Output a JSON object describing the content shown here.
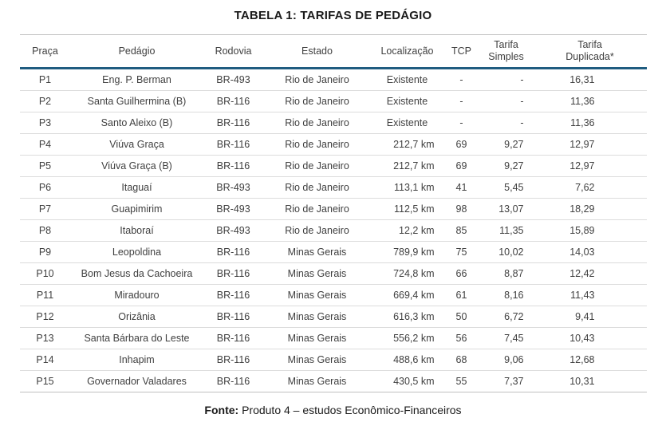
{
  "title": "TABELA 1: TARIFAS DE PEDÁGIO",
  "table": {
    "headers": [
      "Praça",
      "Pedágio",
      "Rodovia",
      "Estado",
      "Localização",
      "TCP",
      "Tarifa Simples",
      "Tarifa Duplicada*"
    ],
    "rows": [
      [
        "P1",
        "Eng. P. Berman",
        "BR-493",
        "Rio de Janeiro",
        "Existente",
        "-",
        "-",
        "16,31"
      ],
      [
        "P2",
        "Santa Guilhermina (B)",
        "BR-116",
        "Rio de Janeiro",
        "Existente",
        "-",
        "-",
        "11,36"
      ],
      [
        "P3",
        "Santo Aleixo (B)",
        "BR-116",
        "Rio de Janeiro",
        "Existente",
        "-",
        "-",
        "11,36"
      ],
      [
        "P4",
        "Viúva Graça",
        "BR-116",
        "Rio de Janeiro",
        "212,7 km",
        "69",
        "9,27",
        "12,97"
      ],
      [
        "P5",
        "Viúva Graça (B)",
        "BR-116",
        "Rio de Janeiro",
        "212,7 km",
        "69",
        "9,27",
        "12,97"
      ],
      [
        "P6",
        "Itaguaí",
        "BR-493",
        "Rio de Janeiro",
        "113,1 km",
        "41",
        "5,45",
        "7,62"
      ],
      [
        "P7",
        "Guapimirim",
        "BR-493",
        "Rio de Janeiro",
        "112,5 km",
        "98",
        "13,07",
        "18,29"
      ],
      [
        "P8",
        "Itaboraí",
        "BR-493",
        "Rio de Janeiro",
        "12,2 km",
        "85",
        "11,35",
        "15,89"
      ],
      [
        "P9",
        "Leopoldina",
        "BR-116",
        "Minas Gerais",
        "789,9 km",
        "75",
        "10,02",
        "14,03"
      ],
      [
        "P10",
        "Bom Jesus da Cachoeira",
        "BR-116",
        "Minas Gerais",
        "724,8 km",
        "66",
        "8,87",
        "12,42"
      ],
      [
        "P11",
        "Miradouro",
        "BR-116",
        "Minas Gerais",
        "669,4 km",
        "61",
        "8,16",
        "11,43"
      ],
      [
        "P12",
        "Orizânia",
        "BR-116",
        "Minas Gerais",
        "616,3 km",
        "50",
        "6,72",
        "9,41"
      ],
      [
        "P13",
        "Santa Bárbara do Leste",
        "BR-116",
        "Minas Gerais",
        "556,2 km",
        "56",
        "7,45",
        "10,43"
      ],
      [
        "P14",
        "Inhapim",
        "BR-116",
        "Minas Gerais",
        "488,6 km",
        "68",
        "9,06",
        "12,68"
      ],
      [
        "P15",
        "Governador Valadares",
        "BR-116",
        "Minas Gerais",
        "430,5 km",
        "55",
        "7,37",
        "10,31"
      ]
    ]
  },
  "footer": {
    "label": "Fonte:",
    "text": " Produto 4 – estudos Econômico-Financeiros"
  },
  "colors": {
    "header_rule": "#1f5c80",
    "row_rule": "#dcdcdc",
    "text": "#404040"
  }
}
